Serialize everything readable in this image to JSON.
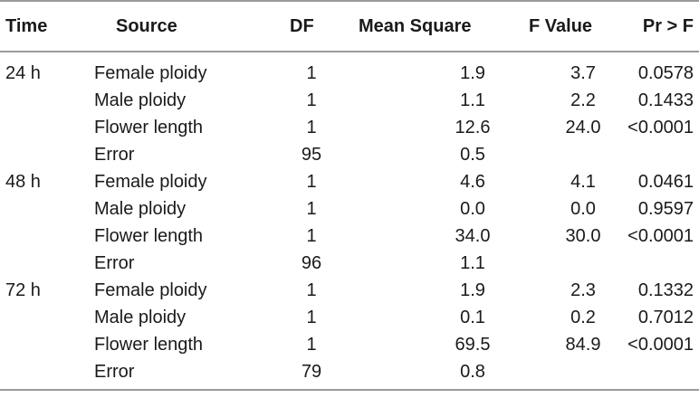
{
  "table": {
    "headers": {
      "time": "Time",
      "source": "Source",
      "df": "DF",
      "mean_square": "Mean Square",
      "f_value": "F Value",
      "pr_f": "Pr > F"
    },
    "rows": [
      {
        "time": "24 h",
        "source": "Female ploidy",
        "df": "1",
        "mean_square": "1.9",
        "f_value": "3.7",
        "pr_f": "0.0578"
      },
      {
        "time": "",
        "source": "Male ploidy",
        "df": "1",
        "mean_square": "1.1",
        "f_value": "2.2",
        "pr_f": "0.1433"
      },
      {
        "time": "",
        "source": "Flower length",
        "df": "1",
        "mean_square": "12.6",
        "f_value": "24.0",
        "pr_f": "<0.0001"
      },
      {
        "time": "",
        "source": "Error",
        "df": "95",
        "mean_square": "0.5",
        "f_value": "",
        "pr_f": ""
      },
      {
        "time": "48 h",
        "source": "Female ploidy",
        "df": "1",
        "mean_square": "4.6",
        "f_value": "4.1",
        "pr_f": "0.0461"
      },
      {
        "time": "",
        "source": "Male ploidy",
        "df": "1",
        "mean_square": "0.0",
        "f_value": "0.0",
        "pr_f": "0.9597"
      },
      {
        "time": "",
        "source": "Flower length",
        "df": "1",
        "mean_square": "34.0",
        "f_value": "30.0",
        "pr_f": "<0.0001"
      },
      {
        "time": "",
        "source": "Error",
        "df": "96",
        "mean_square": "1.1",
        "f_value": "",
        "pr_f": ""
      },
      {
        "time": "72 h",
        "source": "Female ploidy",
        "df": "1",
        "mean_square": "1.9",
        "f_value": "2.3",
        "pr_f": "0.1332"
      },
      {
        "time": "",
        "source": "Male ploidy",
        "df": "1",
        "mean_square": "0.1",
        "f_value": "0.2",
        "pr_f": "0.7012"
      },
      {
        "time": "",
        "source": "Flower length",
        "df": "1",
        "mean_square": "69.5",
        "f_value": "84.9",
        "pr_f": "<0.0001"
      },
      {
        "time": "",
        "source": "Error",
        "df": "79",
        "mean_square": "0.8",
        "f_value": "",
        "pr_f": ""
      }
    ]
  }
}
